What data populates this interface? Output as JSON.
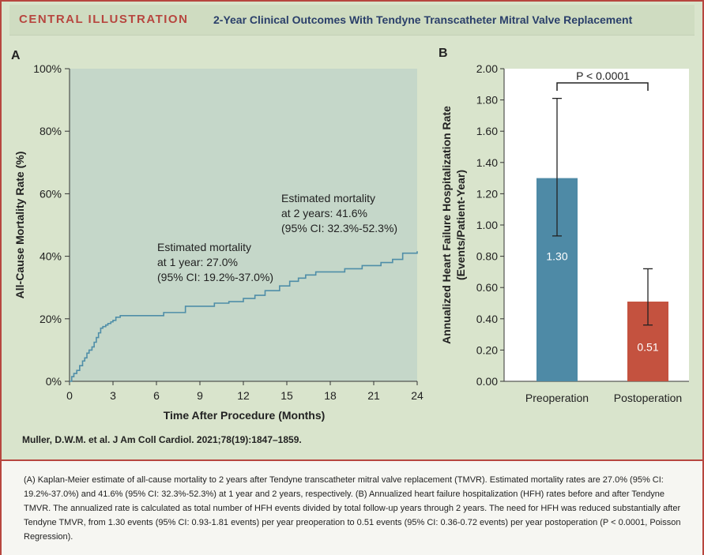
{
  "header": {
    "label": "CENTRAL ILLUSTRATION",
    "title": "2-Year Clinical Outcomes With Tendyne Transcatheter Mitral Valve Replacement"
  },
  "citation": "Muller, D.W.M. et al. J Am Coll Cardiol. 2021;78(19):1847–1859.",
  "caption": {
    "text": "(A) Kaplan-Meier estimate of all-cause mortality to 2 years after Tendyne transcatheter mitral valve replacement (TMVR). Estimated mortality rates are 27.0% (95% CI: 19.2%-37.0%) and 41.6% (95% CI: 32.3%-52.3%) at 1 year and 2 years, respectively. (B) Annualized heart failure hospitalization (HFH) rates before and after Tendyne TMVR. The annualized rate is calculated as total number of HFH events divided by total follow-up years through 2 years. The need for HFH was reduced substantially after Tendyne TMVR, from 1.30 events (95% CI: 0.93-1.81 events) per year preoperation to 0.51 events (95% CI: 0.36-0.72 events) per year postoperation (P < 0.0001, Poisson Regression)."
  },
  "colors": {
    "border": "#b7463f",
    "background": "#d9e4cc",
    "plot_bg": "#c5d7c9",
    "km_line": "#4f8ea8",
    "bar_pre": "#4e8aa6",
    "bar_post": "#c4523f"
  },
  "chart_data": [
    {
      "panel": "A",
      "type": "line",
      "step": true,
      "xlabel": "Time After Procedure (Months)",
      "ylabel": "All-Cause Mortality Rate (%)",
      "xlim": [
        0,
        24
      ],
      "ylim": [
        0,
        100
      ],
      "xticks": [
        "0",
        "3",
        "6",
        "9",
        "12",
        "15",
        "18",
        "21",
        "24"
      ],
      "yticks": [
        "0%",
        "20%",
        "40%",
        "60%",
        "80%",
        "100%"
      ],
      "series": [
        {
          "x": [
            0,
            0.15,
            0.3,
            0.5,
            0.7,
            0.9,
            1.05,
            1.2,
            1.35,
            1.55,
            1.7,
            1.85,
            2.0,
            2.15,
            2.3,
            2.5,
            2.65,
            2.85,
            3.0,
            3.2,
            3.5,
            3.8,
            6.5,
            8.0,
            10.0,
            11.0,
            12.0,
            12.8,
            13.5,
            14.5,
            15.2,
            15.8,
            16.3,
            17.0,
            19.0,
            20.2,
            21.5,
            22.3,
            23.0,
            24.0
          ],
          "y": [
            0,
            1.5,
            2.5,
            3.5,
            5.0,
            6.5,
            7.5,
            9.0,
            10.0,
            11.0,
            12.5,
            14.0,
            15.5,
            17.0,
            17.5,
            18.0,
            18.5,
            19.0,
            19.5,
            20.5,
            21.0,
            21.0,
            22.0,
            24.0,
            25.0,
            25.5,
            26.5,
            27.5,
            29.0,
            30.5,
            32.0,
            33.0,
            34.0,
            35.0,
            36.0,
            37.0,
            38.0,
            39.0,
            41.0,
            41.6
          ]
        }
      ],
      "annotations": [
        {
          "lines": [
            "Estimated mortality",
            "at 1 year: 27.0%",
            "(95% CI: 19.2%-37.0%)"
          ]
        },
        {
          "lines": [
            "Estimated mortality",
            "at 2 years: 41.6%",
            "(95% CI: 32.3%-52.3%)"
          ]
        }
      ]
    },
    {
      "panel": "B",
      "type": "bar",
      "categories": [
        "Preoperation",
        "Postoperation"
      ],
      "values": [
        1.3,
        0.51
      ],
      "value_labels": [
        "1.30",
        "0.51"
      ],
      "errors": [
        [
          0.93,
          1.81
        ],
        [
          0.36,
          0.72
        ]
      ],
      "ylabel_lines": [
        "Annualized Heart Failure Hospitalization Rate",
        "(Events/Patient-Year)"
      ],
      "ylim": [
        0,
        2.0
      ],
      "yticks": [
        "0.00",
        "0.20",
        "0.40",
        "0.60",
        "0.80",
        "1.00",
        "1.20",
        "1.40",
        "1.60",
        "1.80",
        "2.00"
      ],
      "significance": "P < 0.0001"
    }
  ]
}
